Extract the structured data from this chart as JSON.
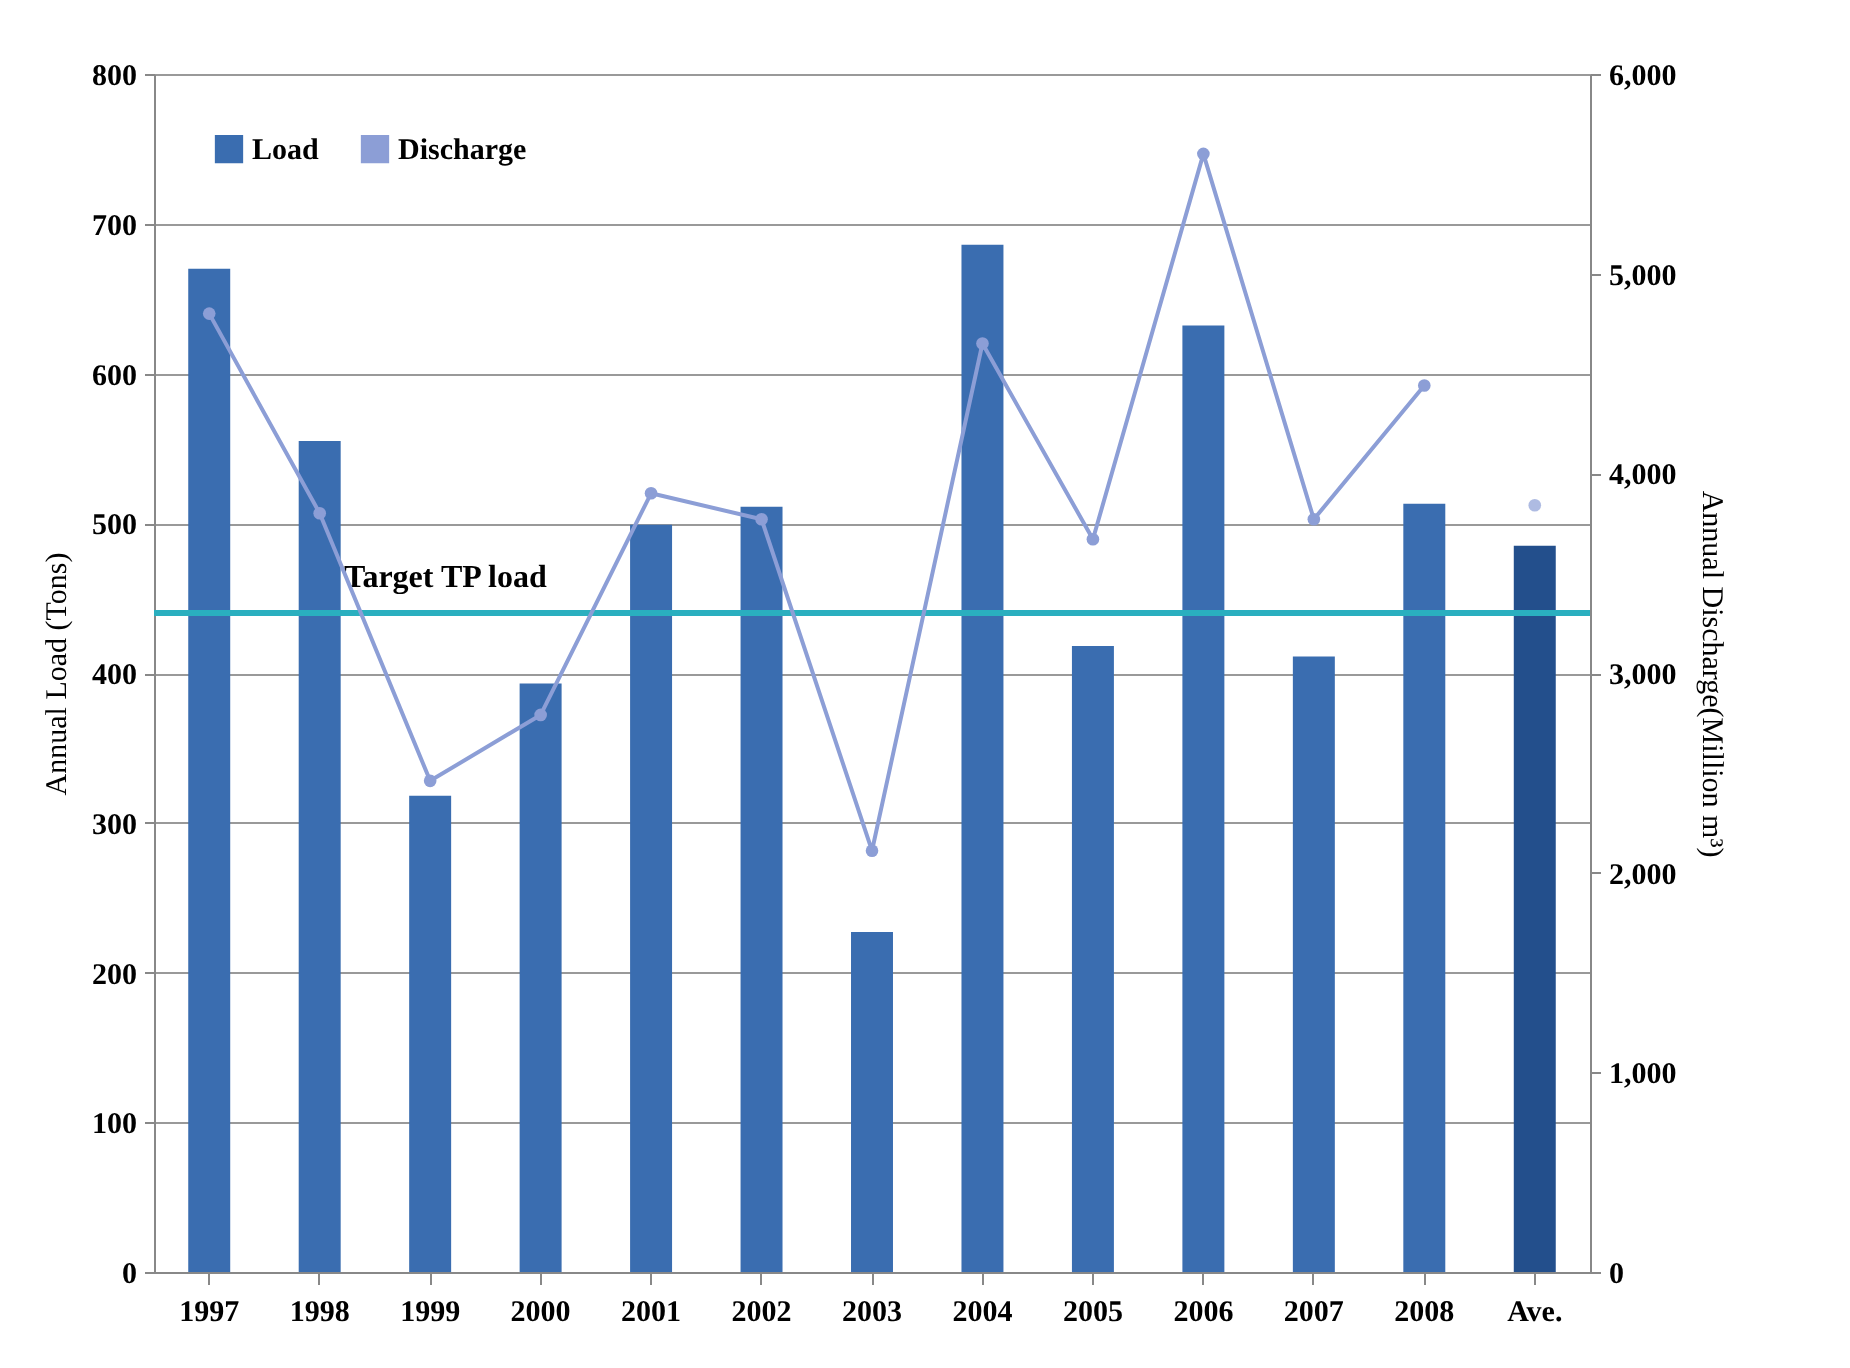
{
  "chart_data": {
    "type": "bar",
    "categories": [
      "1997",
      "1998",
      "1999",
      "2000",
      "2001",
      "2002",
      "2003",
      "2004",
      "2005",
      "2006",
      "2007",
      "2008",
      "Ave."
    ],
    "ylabel": "Annual Load (Tons)",
    "y2label": "Annual Discharge(Million m³)",
    "series": [
      {
        "name": "Load",
        "color": "#3a6db0",
        "colors": [
          "#3a6db0",
          "#3a6db0",
          "#3a6db0",
          "#3a6db0",
          "#3a6db0",
          "#3a6db0",
          "#3a6db0",
          "#3a6db0",
          "#3a6db0",
          "#3a6db0",
          "#3a6db0",
          "#3a6db0",
          "#234f8c"
        ],
        "values": [
          670,
          555,
          318,
          393,
          499,
          511,
          227,
          686,
          418,
          632,
          411,
          513,
          485
        ]
      },
      {
        "name": "Discharge",
        "type": "line",
        "axis": "y2",
        "color": "#8c9ed6",
        "marker": "circle",
        "values": [
          4800,
          3800,
          2460,
          2790,
          3900,
          3770,
          2110,
          4650,
          3670,
          5600,
          3770,
          4440,
          null
        ]
      },
      {
        "type": "scatter",
        "axis": "y2",
        "color": "#8c9ed6",
        "marker": "circle",
        "x": [
          "Ave."
        ],
        "values": [
          3840
        ]
      }
    ],
    "ylim": [
      0,
      800
    ],
    "yticks": [
      0,
      100,
      200,
      300,
      400,
      500,
      600,
      700,
      800
    ],
    "y2lim": [
      0,
      6000
    ],
    "y2ticks": [
      {
        "value": 0,
        "label": "0"
      },
      {
        "value": 1000,
        "label": "1,000"
      },
      {
        "value": 2000,
        "label": "2,000"
      },
      {
        "value": 3000,
        "label": "3,000"
      },
      {
        "value": 4000,
        "label": "4,000"
      },
      {
        "value": 5000,
        "label": "5,000"
      },
      {
        "value": 6000,
        "label": "6,000"
      }
    ],
    "ref_lines": [
      {
        "axis": "y",
        "value": 440,
        "label": "Target TP load",
        "color": "#2aafbf"
      }
    ],
    "grid": "y",
    "legend": "top left"
  }
}
